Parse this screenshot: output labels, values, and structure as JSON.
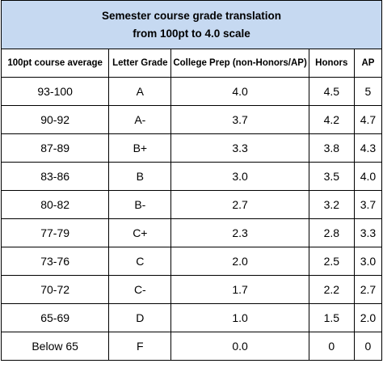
{
  "title": {
    "line1": "Semester course grade translation",
    "line2": "from 100pt to 4.0 scale"
  },
  "columns": [
    "100pt course average",
    "Letter Grade",
    "College Prep (non-Honors/AP)",
    "Honors",
    "AP"
  ],
  "rows": [
    [
      "93-100",
      "A",
      "4.0",
      "4.5",
      "5"
    ],
    [
      "90-92",
      "A-",
      "3.7",
      "4.2",
      "4.7"
    ],
    [
      "87-89",
      "B+",
      "3.3",
      "3.8",
      "4.3"
    ],
    [
      "83-86",
      "B",
      "3.0",
      "3.5",
      "4.0"
    ],
    [
      "80-82",
      "B-",
      "2.7",
      "3.2",
      "3.7"
    ],
    [
      "77-79",
      "C+",
      "2.3",
      "2.8",
      "3.3"
    ],
    [
      "73-76",
      "C",
      "2.0",
      "2.5",
      "3.0"
    ],
    [
      "70-72",
      "C-",
      "1.7",
      "2.2",
      "2.7"
    ],
    [
      "65-69",
      "D",
      "1.0",
      "1.5",
      "2.0"
    ],
    [
      "Below 65",
      "F",
      "0.0",
      "0",
      "0"
    ]
  ],
  "colors": {
    "title_background": "#c6d9f1",
    "border": "#000000"
  }
}
